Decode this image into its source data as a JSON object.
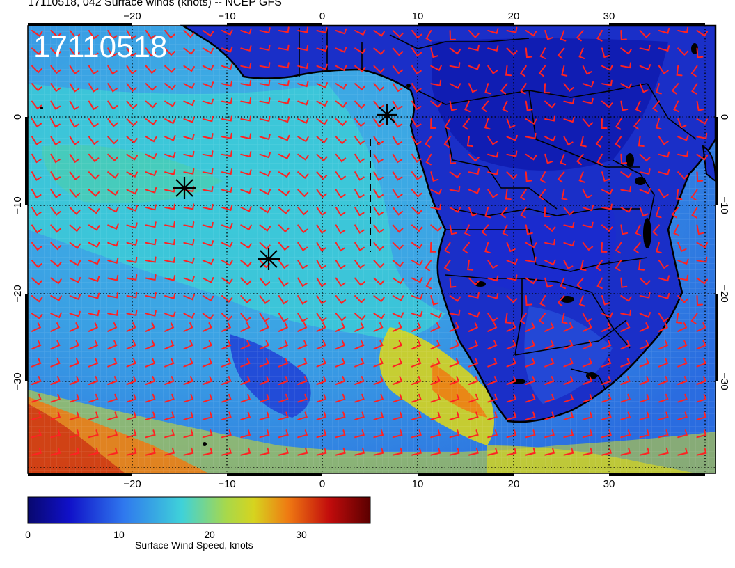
{
  "header": {
    "title": "17110518, 042 Surface winds (knots) -- NCEP GFS"
  },
  "map": {
    "stamp": "17110518",
    "lon_ticks_bottom": [
      "−20",
      "−10",
      "0",
      "10",
      "20",
      "30"
    ],
    "lon_ticks_top": [
      "−20",
      "−10",
      "0",
      "10",
      "20",
      "30"
    ],
    "lat_ticks_left": [
      "0",
      "−10",
      "−20",
      "−30"
    ],
    "lat_ticks_right": [
      "0",
      "−10",
      "−20",
      "−30"
    ],
    "lon_range": [
      -30,
      42
    ],
    "lat_range": [
      -40,
      10
    ],
    "grid": true,
    "wind_barb_color": "#ff2222",
    "coastline_color": "#000000",
    "markers": [
      "asterisk",
      "asterisk",
      "asterisk"
    ]
  },
  "colorbar": {
    "title": "Surface Wind Speed, knots",
    "ticks": [
      "0",
      "10",
      "20",
      "30"
    ],
    "range": [
      0,
      36
    ],
    "colors": [
      "#08086e",
      "#1c1ce6",
      "#3b9bf0",
      "#3fd2d9",
      "#d6d41f",
      "#ef7a12",
      "#c20c0c",
      "#5a0000"
    ]
  }
}
